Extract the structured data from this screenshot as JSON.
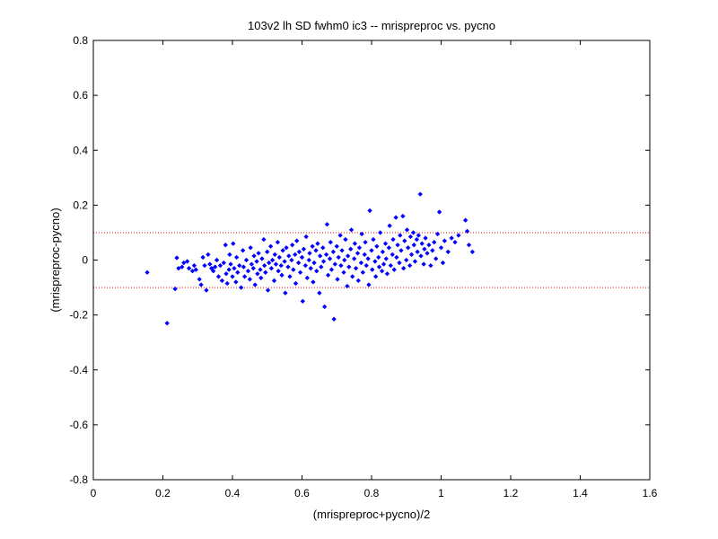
{
  "chart_data": {
    "type": "scatter",
    "title": "103v2 lh SD fwhm0 ic3 -- mrispreproc vs. pycno",
    "xlabel": "(mrispreproc+pycno)/2",
    "ylabel": "(mrispreproc-pycno)",
    "xlim": [
      0,
      1.6
    ],
    "ylim": [
      -0.8,
      0.8
    ],
    "xticks": [
      0,
      0.2,
      0.4,
      0.6,
      0.8,
      1,
      1.2,
      1.4,
      1.6
    ],
    "xtick_labels": [
      "0",
      "0.2",
      "0.4",
      "0.6",
      "0.8",
      "1",
      "1.2",
      "1.4",
      "1.6"
    ],
    "yticks": [
      -0.8,
      -0.6,
      -0.4,
      -0.2,
      0,
      0.2,
      0.4,
      0.6,
      0.8
    ],
    "ytick_labels": [
      "-0.8",
      "-0.6",
      "-0.4",
      "-0.2",
      "0",
      "0.2",
      "0.4",
      "0.6",
      "0.8"
    ],
    "grid": false,
    "marker_color": "#0000ff",
    "reference_lines": [
      {
        "y": 0.1,
        "style": "dotted",
        "color": "#ff0000"
      },
      {
        "y": -0.1,
        "style": "dotted",
        "color": "#ff0000"
      }
    ],
    "points": [
      [
        0.155,
        -0.045
      ],
      [
        0.212,
        -0.23
      ],
      [
        0.235,
        -0.105
      ],
      [
        0.24,
        0.008
      ],
      [
        0.245,
        -0.03
      ],
      [
        0.255,
        -0.025
      ],
      [
        0.26,
        -0.01
      ],
      [
        0.27,
        -0.005
      ],
      [
        0.275,
        -0.03
      ],
      [
        0.285,
        -0.04
      ],
      [
        0.29,
        -0.02
      ],
      [
        0.295,
        -0.035
      ],
      [
        0.305,
        -0.07
      ],
      [
        0.31,
        -0.09
      ],
      [
        0.315,
        0.01
      ],
      [
        0.32,
        -0.02
      ],
      [
        0.325,
        -0.11
      ],
      [
        0.33,
        0.02
      ],
      [
        0.335,
        -0.015
      ],
      [
        0.34,
        -0.03
      ],
      [
        0.345,
        -0.04
      ],
      [
        0.35,
        -0.025
      ],
      [
        0.355,
        0.0
      ],
      [
        0.36,
        -0.06
      ],
      [
        0.365,
        -0.02
      ],
      [
        0.37,
        -0.075
      ],
      [
        0.375,
        -0.01
      ],
      [
        0.38,
        0.055
      ],
      [
        0.382,
        -0.05
      ],
      [
        0.385,
        -0.085
      ],
      [
        0.39,
        -0.035
      ],
      [
        0.392,
        0.02
      ],
      [
        0.395,
        -0.015
      ],
      [
        0.4,
        -0.06
      ],
      [
        0.402,
        0.06
      ],
      [
        0.405,
        -0.03
      ],
      [
        0.41,
        -0.08
      ],
      [
        0.412,
        0.01
      ],
      [
        0.415,
        -0.045
      ],
      [
        0.42,
        -0.02
      ],
      [
        0.425,
        -0.1
      ],
      [
        0.43,
        0.035
      ],
      [
        0.432,
        -0.025
      ],
      [
        0.435,
        -0.06
      ],
      [
        0.44,
        0.0
      ],
      [
        0.445,
        -0.04
      ],
      [
        0.45,
        -0.07
      ],
      [
        0.452,
        0.045
      ],
      [
        0.455,
        -0.015
      ],
      [
        0.46,
        -0.03
      ],
      [
        0.462,
        0.015
      ],
      [
        0.465,
        -0.09
      ],
      [
        0.47,
        -0.005
      ],
      [
        0.472,
        -0.05
      ],
      [
        0.475,
        0.025
      ],
      [
        0.48,
        -0.035
      ],
      [
        0.482,
        -0.065
      ],
      [
        0.485,
        0.005
      ],
      [
        0.49,
        0.075
      ],
      [
        0.492,
        -0.02
      ],
      [
        0.495,
        -0.045
      ],
      [
        0.5,
        0.03
      ],
      [
        0.502,
        -0.11
      ],
      [
        0.505,
        -0.01
      ],
      [
        0.51,
        0.05
      ],
      [
        0.512,
        -0.03
      ],
      [
        0.515,
        0.0
      ],
      [
        0.52,
        -0.075
      ],
      [
        0.522,
        0.02
      ],
      [
        0.525,
        -0.015
      ],
      [
        0.53,
        0.065
      ],
      [
        0.532,
        -0.04
      ],
      [
        0.535,
        0.01
      ],
      [
        0.54,
        -0.02
      ],
      [
        0.542,
        -0.055
      ],
      [
        0.545,
        0.035
      ],
      [
        0.55,
        -0.005
      ],
      [
        0.552,
        -0.12
      ],
      [
        0.555,
        0.045
      ],
      [
        0.56,
        -0.025
      ],
      [
        0.562,
        0.015
      ],
      [
        0.565,
        -0.06
      ],
      [
        0.57,
        0.0
      ],
      [
        0.572,
        0.055
      ],
      [
        0.575,
        -0.035
      ],
      [
        0.58,
        0.02
      ],
      [
        0.582,
        -0.085
      ],
      [
        0.585,
        0.07
      ],
      [
        0.59,
        -0.01
      ],
      [
        0.592,
        0.03
      ],
      [
        0.595,
        -0.045
      ],
      [
        0.6,
        0.01
      ],
      [
        0.602,
        -0.15
      ],
      [
        0.605,
        0.04
      ],
      [
        0.61,
        -0.02
      ],
      [
        0.612,
        0.085
      ],
      [
        0.615,
        -0.065
      ],
      [
        0.62,
        0.0
      ],
      [
        0.622,
        0.025
      ],
      [
        0.625,
        -0.03
      ],
      [
        0.63,
        0.05
      ],
      [
        0.632,
        -0.08
      ],
      [
        0.635,
        -0.01
      ],
      [
        0.64,
        0.035
      ],
      [
        0.642,
        -0.04
      ],
      [
        0.645,
        0.06
      ],
      [
        0.65,
        -0.12
      ],
      [
        0.652,
        0.015
      ],
      [
        0.655,
        -0.025
      ],
      [
        0.66,
        0.045
      ],
      [
        0.662,
        -0.005
      ],
      [
        0.665,
        -0.17
      ],
      [
        0.67,
        0.02
      ],
      [
        0.672,
        0.13
      ],
      [
        0.675,
        -0.055
      ],
      [
        0.68,
        0.005
      ],
      [
        0.682,
        0.065
      ],
      [
        0.685,
        -0.035
      ],
      [
        0.69,
        0.03
      ],
      [
        0.692,
        -0.215
      ],
      [
        0.695,
        -0.015
      ],
      [
        0.7,
        0.05
      ],
      [
        0.702,
        -0.07
      ],
      [
        0.705,
        0.01
      ],
      [
        0.71,
        0.09
      ],
      [
        0.712,
        -0.02
      ],
      [
        0.715,
        0.035
      ],
      [
        0.72,
        -0.045
      ],
      [
        0.722,
        0.0
      ],
      [
        0.725,
        0.075
      ],
      [
        0.73,
        -0.095
      ],
      [
        0.732,
        0.015
      ],
      [
        0.735,
        -0.025
      ],
      [
        0.74,
        0.04
      ],
      [
        0.742,
        0.11
      ],
      [
        0.745,
        -0.06
      ],
      [
        0.75,
        0.005
      ],
      [
        0.752,
        0.06
      ],
      [
        0.755,
        -0.03
      ],
      [
        0.76,
        0.025
      ],
      [
        0.762,
        -0.075
      ],
      [
        0.765,
        0.045
      ],
      [
        0.77,
        -0.01
      ],
      [
        0.772,
        0.095
      ],
      [
        0.775,
        -0.045
      ],
      [
        0.78,
        0.02
      ],
      [
        0.782,
        0.065
      ],
      [
        0.785,
        -0.02
      ],
      [
        0.79,
        0.005
      ],
      [
        0.792,
        -0.09
      ],
      [
        0.795,
        0.18
      ],
      [
        0.8,
        0.035
      ],
      [
        0.802,
        -0.035
      ],
      [
        0.805,
        0.075
      ],
      [
        0.81,
        -0.005
      ],
      [
        0.812,
        -0.06
      ],
      [
        0.815,
        0.05
      ],
      [
        0.82,
        0.01
      ],
      [
        0.822,
        -0.025
      ],
      [
        0.825,
        0.1
      ],
      [
        0.83,
        -0.04
      ],
      [
        0.832,
        0.03
      ],
      [
        0.835,
        -0.015
      ],
      [
        0.84,
        0.06
      ],
      [
        0.842,
        0.005
      ],
      [
        0.845,
        -0.05
      ],
      [
        0.85,
        0.045
      ],
      [
        0.852,
        0.125
      ],
      [
        0.855,
        -0.02
      ],
      [
        0.86,
        0.02
      ],
      [
        0.862,
        0.075
      ],
      [
        0.865,
        -0.035
      ],
      [
        0.87,
        0.155
      ],
      [
        0.872,
        0.01
      ],
      [
        0.875,
        0.055
      ],
      [
        0.88,
        -0.01
      ],
      [
        0.882,
        0.09
      ],
      [
        0.885,
        0.035
      ],
      [
        0.89,
        0.16
      ],
      [
        0.892,
        -0.03
      ],
      [
        0.895,
        0.07
      ],
      [
        0.9,
        0.0
      ],
      [
        0.902,
        0.11
      ],
      [
        0.905,
        0.045
      ],
      [
        0.91,
        -0.02
      ],
      [
        0.912,
        0.085
      ],
      [
        0.915,
        0.02
      ],
      [
        0.92,
        0.1
      ],
      [
        0.922,
        0.055
      ],
      [
        0.925,
        -0.005
      ],
      [
        0.93,
        0.075
      ],
      [
        0.932,
        0.03
      ],
      [
        0.935,
        0.09
      ],
      [
        0.94,
        0.24
      ],
      [
        0.942,
        0.015
      ],
      [
        0.945,
        0.06
      ],
      [
        0.95,
        -0.015
      ],
      [
        0.952,
        0.04
      ],
      [
        0.955,
        0.08
      ],
      [
        0.96,
        0.025
      ],
      [
        0.965,
        0.055
      ],
      [
        0.97,
        -0.02
      ],
      [
        0.975,
        0.035
      ],
      [
        0.98,
        0.065
      ],
      [
        0.985,
        0.005
      ],
      [
        0.99,
        0.095
      ],
      [
        0.995,
        0.175
      ],
      [
        1.0,
        0.045
      ],
      [
        1.005,
        -0.01
      ],
      [
        1.01,
        0.07
      ],
      [
        1.02,
        0.03
      ],
      [
        1.03,
        0.08
      ],
      [
        1.04,
        0.065
      ],
      [
        1.05,
        0.09
      ],
      [
        1.07,
        0.145
      ],
      [
        1.075,
        0.105
      ],
      [
        1.08,
        0.055
      ],
      [
        1.09,
        0.03
      ]
    ]
  }
}
